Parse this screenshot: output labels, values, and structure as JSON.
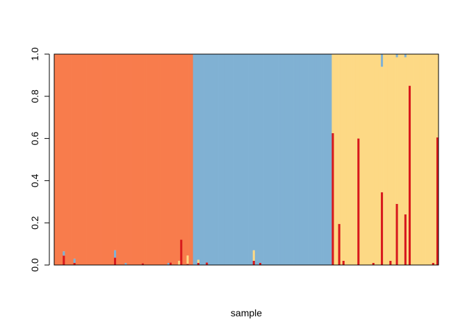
{
  "chart_data": {
    "type": "bar",
    "subtype": "stacked-admixture",
    "title": "",
    "xlabel": "sample",
    "ylabel": "",
    "ylim": [
      0,
      1
    ],
    "yticks": [
      "0.0",
      "0.2",
      "0.4",
      "0.6",
      "0.8",
      "1.0"
    ],
    "grid": false,
    "legend": "none",
    "stack_order": [
      "red",
      "yellow",
      "blue",
      "orange"
    ],
    "colors": {
      "red": "#d7191c",
      "yellow": "#fdd985",
      "blue": "#80b1d3",
      "orange": "#f87c4c"
    },
    "n_samples": 180,
    "groups": [
      {
        "dominant": "orange",
        "from": 0,
        "to": 64
      },
      {
        "dominant": "blue",
        "from": 65,
        "to": 129
      },
      {
        "dominant": "yellow",
        "from": 130,
        "to": 179
      }
    ],
    "red_spikes": [
      {
        "sample": 4,
        "value": 0.045
      },
      {
        "sample": 9,
        "value": 0.01
      },
      {
        "sample": 28,
        "value": 0.035
      },
      {
        "sample": 41,
        "value": 0.008
      },
      {
        "sample": 54,
        "value": 0.012
      },
      {
        "sample": 59,
        "value": 0.12
      },
      {
        "sample": 62,
        "value": 0.005
      },
      {
        "sample": 67,
        "value": 0.01
      },
      {
        "sample": 71,
        "value": 0.012
      },
      {
        "sample": 93,
        "value": 0.02
      },
      {
        "sample": 96,
        "value": 0.01
      },
      {
        "sample": 130,
        "value": 0.625
      },
      {
        "sample": 133,
        "value": 0.195
      },
      {
        "sample": 135,
        "value": 0.02
      },
      {
        "sample": 142,
        "value": 0.6
      },
      {
        "sample": 149,
        "value": 0.01
      },
      {
        "sample": 153,
        "value": 0.345
      },
      {
        "sample": 157,
        "value": 0.02
      },
      {
        "sample": 160,
        "value": 0.29
      },
      {
        "sample": 164,
        "value": 0.24
      },
      {
        "sample": 166,
        "value": 0.85
      },
      {
        "sample": 177,
        "value": 0.01
      },
      {
        "sample": 179,
        "value": 0.605
      }
    ],
    "blue_notches": [
      {
        "sample": 4,
        "value": 0.02
      },
      {
        "sample": 9,
        "value": 0.02
      },
      {
        "sample": 28,
        "value": 0.035
      },
      {
        "sample": 33,
        "value": 0.01
      },
      {
        "sample": 53,
        "value": 0.01
      },
      {
        "sample": 153,
        "value": 0.06
      },
      {
        "sample": 160,
        "value": 0.015
      },
      {
        "sample": 164,
        "value": 0.015
      }
    ],
    "yellow_notches": [
      {
        "sample": 58,
        "value": 0.02
      },
      {
        "sample": 62,
        "value": 0.04
      },
      {
        "sample": 67,
        "value": 0.015
      },
      {
        "sample": 93,
        "value": 0.05
      }
    ]
  }
}
